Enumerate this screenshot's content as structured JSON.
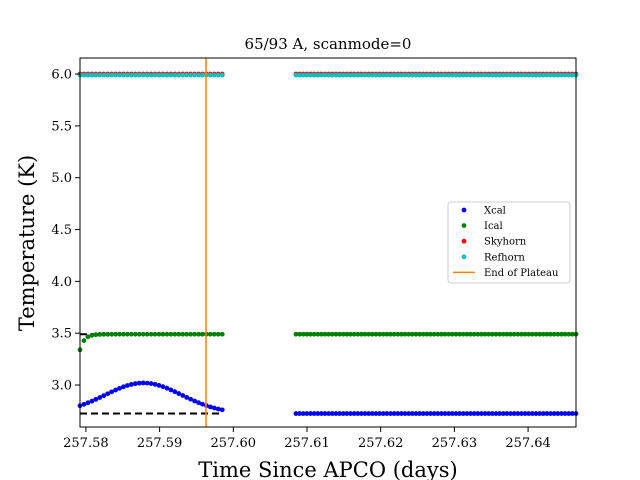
{
  "chart_data": {
    "type": "scatter",
    "title": "65/93 A, scanmode=0",
    "xlabel": "Time Since APCO (days)",
    "ylabel": "Temperature (K)",
    "xlim": [
      257.5792,
      257.6465
    ],
    "ylim": [
      2.595,
      6.155
    ],
    "x_ticks": [
      "257.58",
      "257.59",
      "257.60",
      "257.61",
      "257.62",
      "257.63",
      "257.64"
    ],
    "x_tick_values": [
      257.58,
      257.59,
      257.6,
      257.61,
      257.62,
      257.63,
      257.64
    ],
    "y_ticks": [
      "3.0",
      "3.5",
      "4.0",
      "4.5",
      "5.0",
      "5.5",
      "6.0"
    ],
    "y_tick_values": [
      3.0,
      3.5,
      4.0,
      4.5,
      5.0,
      5.5,
      6.0
    ],
    "grid": false,
    "legend_position": "center-right",
    "segments": [
      {
        "x_start": 257.5792,
        "x_end": 257.5985,
        "n": 37
      },
      {
        "x_start": 257.6085,
        "x_end": 257.6465,
        "n": 78
      }
    ],
    "series": [
      {
        "name": "Xcal",
        "color": "#0000ff",
        "profile": "xcal",
        "base": 2.725,
        "peak": 3.02,
        "peak_x": 257.5878
      },
      {
        "name": "Ical",
        "color": "#008000",
        "profile": "ical",
        "base": 3.49,
        "start": 3.34
      },
      {
        "name": "Skyhorn",
        "color": "#ff0000",
        "profile": "constant",
        "base": 6.0
      },
      {
        "name": "Refhorn",
        "color": "#00bfbf",
        "profile": "constant",
        "base": 5.99
      }
    ],
    "reference_lines": [
      {
        "y": 2.725,
        "style": "dashed",
        "color": "#000000"
      },
      {
        "y": 3.49,
        "style": "dashed",
        "color": "#000000"
      },
      {
        "y": 5.99,
        "style": "dashed",
        "color": "#000000"
      }
    ],
    "vertical_line": {
      "name": "End of Plateau",
      "x": 257.5963,
      "color": "#ff7f0e"
    }
  }
}
